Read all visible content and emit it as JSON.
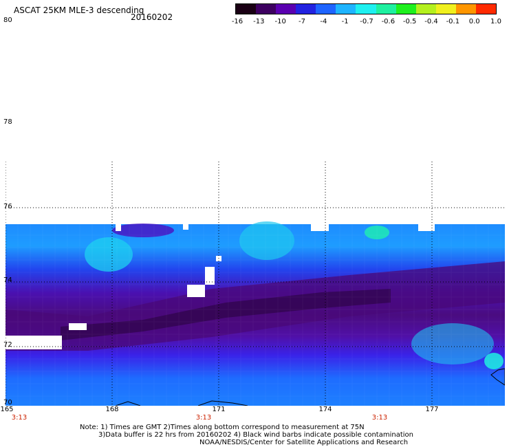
{
  "header": {
    "title": "ASCAT 25KM MLE-3 descending",
    "date": "20160202"
  },
  "colorbar": {
    "tick_labels": [
      "-16",
      "-13",
      "-10",
      "-7",
      "-4",
      "-1",
      "-0.7",
      "-0.6",
      "-0.5",
      "-0.4",
      "-0.1",
      "0.0",
      "1.0"
    ],
    "colors": [
      "#1a0014",
      "#3d0060",
      "#5a00b0",
      "#2222e0",
      "#1e64ff",
      "#1eb4ff",
      "#1ef0f0",
      "#1ef0a0",
      "#1ef01e",
      "#b4f01e",
      "#f0f01e",
      "#ff9600",
      "#ff2a00"
    ]
  },
  "axes": {
    "lat_labels": [
      "80",
      "78",
      "76",
      "74",
      "72",
      "70"
    ],
    "lon_labels": [
      "165",
      "168",
      "171",
      "174",
      "177"
    ],
    "time_labels": [
      "3:13",
      "3:13",
      "3:13"
    ]
  },
  "notes": {
    "line1": "Note: 1) Times are GMT 2)Times along bottom correspond to measurement at 75N",
    "line2": "3)Data buffer is 22 hrs from 20160202 4) Black wind barbs indicate possible contamination",
    "line3": "NOAA/NESDIS/Center for Satellite Applications and Research"
  }
}
